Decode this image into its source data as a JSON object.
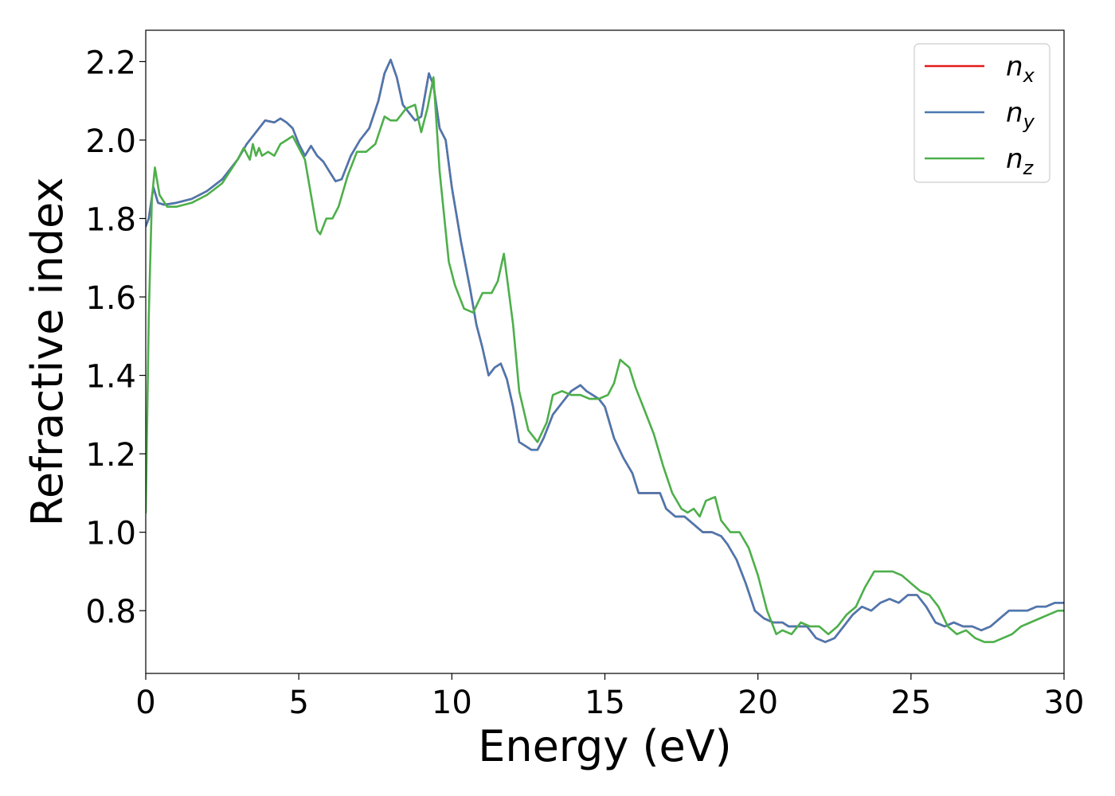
{
  "chart_data": {
    "type": "line",
    "xlabel": "Energy (eV)",
    "ylabel": "Refractive index",
    "xlim": [
      0,
      30
    ],
    "ylim": [
      0.64,
      2.28
    ],
    "xticks": [
      0,
      5,
      10,
      15,
      20,
      25,
      30
    ],
    "yticks": [
      0.8,
      1.0,
      1.2,
      1.4,
      1.6,
      1.8,
      2.0,
      2.2
    ],
    "ytick_labels": [
      "0.8",
      "1.0",
      "1.2",
      "1.4",
      "1.6",
      "1.8",
      "2.0",
      "2.2"
    ],
    "grid": false,
    "legend_position": "top-right",
    "series": [
      {
        "name": "n_x",
        "label_base": "n",
        "label_sub": "x",
        "color": "#e41a1c",
        "x": [
          0,
          0.1,
          0.25,
          0.4,
          0.6,
          1.0,
          1.5,
          2.0,
          2.5,
          3.0,
          3.3,
          3.6,
          3.9,
          4.2,
          4.4,
          4.6,
          4.8,
          5.0,
          5.2,
          5.4,
          5.6,
          5.8,
          6.0,
          6.2,
          6.4,
          6.7,
          7.0,
          7.3,
          7.6,
          7.8,
          8.0,
          8.2,
          8.4,
          8.6,
          8.8,
          9.0,
          9.25,
          9.4,
          9.6,
          9.8,
          10.0,
          10.3,
          10.6,
          10.8,
          11.0,
          11.2,
          11.4,
          11.6,
          11.8,
          12.0,
          12.2,
          12.4,
          12.6,
          12.8,
          13.0,
          13.3,
          13.6,
          13.9,
          14.2,
          14.4,
          14.6,
          14.8,
          15.0,
          15.3,
          15.6,
          15.9,
          16.1,
          16.3,
          16.5,
          16.8,
          17.0,
          17.3,
          17.6,
          17.9,
          18.2,
          18.5,
          18.8,
          19.0,
          19.3,
          19.6,
          19.9,
          20.2,
          20.5,
          20.8,
          21.0,
          21.3,
          21.6,
          21.9,
          22.2,
          22.5,
          22.8,
          23.1,
          23.4,
          23.7,
          24.0,
          24.3,
          24.6,
          24.9,
          25.2,
          25.5,
          25.8,
          26.1,
          26.4,
          26.7,
          27.0,
          27.3,
          27.6,
          27.9,
          28.2,
          28.5,
          28.8,
          29.1,
          29.4,
          29.7,
          30.0
        ],
        "values": [
          1.78,
          1.8,
          1.88,
          1.84,
          1.835,
          1.84,
          1.85,
          1.87,
          1.9,
          1.95,
          1.99,
          2.02,
          2.05,
          2.045,
          2.055,
          2.045,
          2.03,
          1.99,
          1.96,
          1.985,
          1.96,
          1.945,
          1.92,
          1.895,
          1.9,
          1.96,
          2.0,
          2.03,
          2.1,
          2.17,
          2.205,
          2.16,
          2.09,
          2.07,
          2.05,
          2.06,
          2.17,
          2.14,
          2.03,
          2.0,
          1.88,
          1.74,
          1.62,
          1.53,
          1.47,
          1.4,
          1.42,
          1.43,
          1.39,
          1.32,
          1.23,
          1.22,
          1.21,
          1.21,
          1.24,
          1.3,
          1.33,
          1.36,
          1.375,
          1.36,
          1.35,
          1.34,
          1.32,
          1.24,
          1.19,
          1.15,
          1.1,
          1.1,
          1.1,
          1.1,
          1.06,
          1.04,
          1.04,
          1.02,
          1.0,
          1.0,
          0.99,
          0.97,
          0.93,
          0.87,
          0.8,
          0.78,
          0.77,
          0.77,
          0.76,
          0.76,
          0.76,
          0.73,
          0.72,
          0.73,
          0.76,
          0.79,
          0.81,
          0.8,
          0.82,
          0.83,
          0.82,
          0.84,
          0.84,
          0.81,
          0.77,
          0.76,
          0.77,
          0.76,
          0.76,
          0.75,
          0.76,
          0.78,
          0.8,
          0.8,
          0.8,
          0.81,
          0.81,
          0.82,
          0.82
        ]
      },
      {
        "name": "n_y",
        "label_base": "n",
        "label_sub": "y",
        "color": "#4a78b0",
        "x": [
          0,
          0.1,
          0.25,
          0.4,
          0.6,
          1.0,
          1.5,
          2.0,
          2.5,
          3.0,
          3.3,
          3.6,
          3.9,
          4.2,
          4.4,
          4.6,
          4.8,
          5.0,
          5.2,
          5.4,
          5.6,
          5.8,
          6.0,
          6.2,
          6.4,
          6.7,
          7.0,
          7.3,
          7.6,
          7.8,
          8.0,
          8.2,
          8.4,
          8.6,
          8.8,
          9.0,
          9.25,
          9.4,
          9.6,
          9.8,
          10.0,
          10.3,
          10.6,
          10.8,
          11.0,
          11.2,
          11.4,
          11.6,
          11.8,
          12.0,
          12.2,
          12.4,
          12.6,
          12.8,
          13.0,
          13.3,
          13.6,
          13.9,
          14.2,
          14.4,
          14.6,
          14.8,
          15.0,
          15.3,
          15.6,
          15.9,
          16.1,
          16.3,
          16.5,
          16.8,
          17.0,
          17.3,
          17.6,
          17.9,
          18.2,
          18.5,
          18.8,
          19.0,
          19.3,
          19.6,
          19.9,
          20.2,
          20.5,
          20.8,
          21.0,
          21.3,
          21.6,
          21.9,
          22.2,
          22.5,
          22.8,
          23.1,
          23.4,
          23.7,
          24.0,
          24.3,
          24.6,
          24.9,
          25.2,
          25.5,
          25.8,
          26.1,
          26.4,
          26.7,
          27.0,
          27.3,
          27.6,
          27.9,
          28.2,
          28.5,
          28.8,
          29.1,
          29.4,
          29.7,
          30.0
        ],
        "values": [
          1.78,
          1.8,
          1.88,
          1.84,
          1.835,
          1.84,
          1.85,
          1.87,
          1.9,
          1.95,
          1.99,
          2.02,
          2.05,
          2.045,
          2.055,
          2.045,
          2.03,
          1.99,
          1.96,
          1.985,
          1.96,
          1.945,
          1.92,
          1.895,
          1.9,
          1.96,
          2.0,
          2.03,
          2.1,
          2.17,
          2.205,
          2.16,
          2.09,
          2.07,
          2.05,
          2.06,
          2.17,
          2.14,
          2.03,
          2.0,
          1.88,
          1.74,
          1.62,
          1.53,
          1.47,
          1.4,
          1.42,
          1.43,
          1.39,
          1.32,
          1.23,
          1.22,
          1.21,
          1.21,
          1.24,
          1.3,
          1.33,
          1.36,
          1.375,
          1.36,
          1.35,
          1.34,
          1.32,
          1.24,
          1.19,
          1.15,
          1.1,
          1.1,
          1.1,
          1.1,
          1.06,
          1.04,
          1.04,
          1.02,
          1.0,
          1.0,
          0.99,
          0.97,
          0.93,
          0.87,
          0.8,
          0.78,
          0.77,
          0.77,
          0.76,
          0.76,
          0.76,
          0.73,
          0.72,
          0.73,
          0.76,
          0.79,
          0.81,
          0.8,
          0.82,
          0.83,
          0.82,
          0.84,
          0.84,
          0.81,
          0.77,
          0.76,
          0.77,
          0.76,
          0.76,
          0.75,
          0.76,
          0.78,
          0.8,
          0.8,
          0.8,
          0.81,
          0.81,
          0.82,
          0.82
        ]
      },
      {
        "name": "n_z",
        "label_base": "n",
        "label_sub": "z",
        "color": "#4daf4a",
        "x": [
          0,
          0.1,
          0.2,
          0.3,
          0.45,
          0.7,
          1.0,
          1.5,
          2.0,
          2.5,
          3.0,
          3.2,
          3.4,
          3.5,
          3.6,
          3.7,
          3.8,
          4.0,
          4.2,
          4.4,
          4.6,
          4.8,
          5.0,
          5.2,
          5.4,
          5.6,
          5.7,
          5.9,
          6.1,
          6.3,
          6.6,
          6.9,
          7.2,
          7.5,
          7.8,
          8.0,
          8.2,
          8.5,
          8.8,
          9.0,
          9.2,
          9.4,
          9.6,
          9.9,
          10.1,
          10.4,
          10.7,
          11.0,
          11.3,
          11.5,
          11.7,
          12.0,
          12.2,
          12.5,
          12.8,
          13.1,
          13.3,
          13.6,
          13.9,
          14.2,
          14.5,
          14.8,
          15.1,
          15.3,
          15.5,
          15.8,
          16.0,
          16.3,
          16.6,
          16.9,
          17.2,
          17.5,
          17.7,
          17.9,
          18.1,
          18.3,
          18.6,
          18.8,
          19.1,
          19.4,
          19.7,
          20.0,
          20.3,
          20.6,
          20.8,
          21.1,
          21.4,
          21.7,
          22.0,
          22.3,
          22.6,
          22.9,
          23.2,
          23.5,
          23.8,
          24.1,
          24.4,
          24.7,
          25.0,
          25.3,
          25.6,
          25.9,
          26.2,
          26.5,
          26.8,
          27.1,
          27.4,
          27.7,
          28.0,
          28.3,
          28.6,
          28.9,
          29.2,
          29.5,
          29.8,
          30.0
        ],
        "values": [
          1.05,
          1.55,
          1.85,
          1.93,
          1.86,
          1.83,
          1.83,
          1.84,
          1.86,
          1.89,
          1.95,
          1.98,
          1.95,
          1.99,
          1.96,
          1.98,
          1.96,
          1.97,
          1.96,
          1.99,
          2.0,
          2.01,
          1.98,
          1.95,
          1.86,
          1.77,
          1.76,
          1.8,
          1.8,
          1.83,
          1.91,
          1.97,
          1.97,
          1.99,
          2.06,
          2.05,
          2.05,
          2.08,
          2.09,
          2.02,
          2.08,
          2.16,
          1.92,
          1.69,
          1.63,
          1.57,
          1.56,
          1.61,
          1.61,
          1.64,
          1.71,
          1.53,
          1.36,
          1.26,
          1.23,
          1.28,
          1.35,
          1.36,
          1.35,
          1.35,
          1.34,
          1.34,
          1.35,
          1.38,
          1.44,
          1.42,
          1.37,
          1.31,
          1.25,
          1.17,
          1.1,
          1.06,
          1.05,
          1.06,
          1.04,
          1.08,
          1.09,
          1.03,
          1.0,
          1.0,
          0.96,
          0.89,
          0.8,
          0.74,
          0.75,
          0.74,
          0.77,
          0.76,
          0.76,
          0.74,
          0.76,
          0.79,
          0.81,
          0.86,
          0.9,
          0.9,
          0.9,
          0.89,
          0.87,
          0.85,
          0.84,
          0.81,
          0.76,
          0.74,
          0.75,
          0.73,
          0.72,
          0.72,
          0.73,
          0.74,
          0.76,
          0.77,
          0.78,
          0.79,
          0.8,
          0.8
        ]
      }
    ]
  }
}
